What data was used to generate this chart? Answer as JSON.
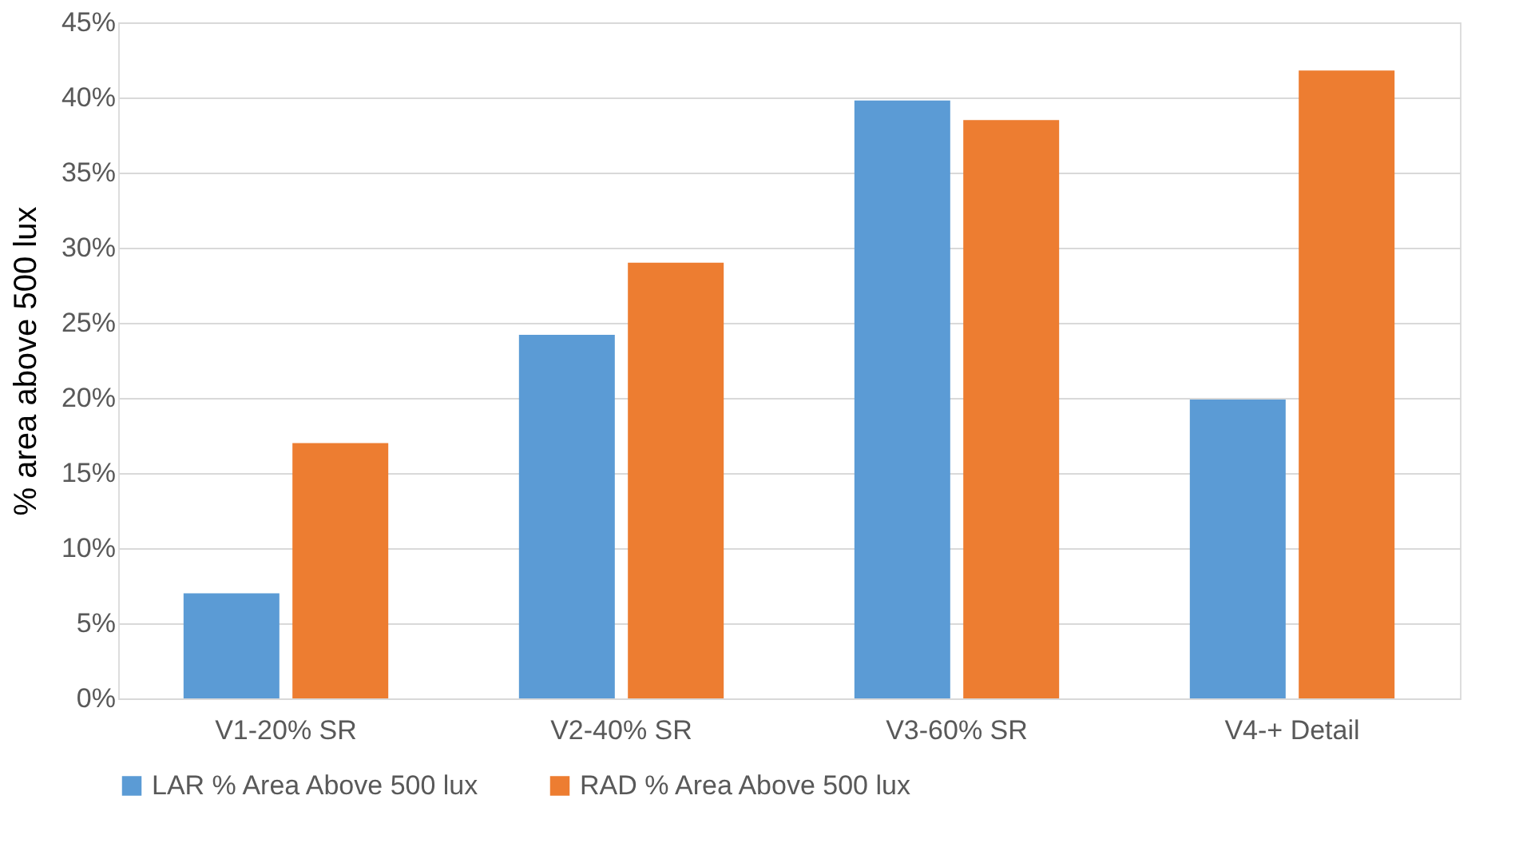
{
  "chart_data": {
    "type": "bar",
    "ylabel": "% area above 500 lux",
    "categories": [
      "V1-20% SR",
      "V2-40% SR",
      "V3-60% SR",
      "V4-+ Detail"
    ],
    "series": [
      {
        "name": "LAR % Area Above 500 lux",
        "color": "#5b9bd5",
        "values": [
          7.0,
          24.2,
          39.8,
          19.9
        ]
      },
      {
        "name": "RAD % Area Above 500 lux",
        "color": "#ed7d31",
        "values": [
          17.0,
          29.0,
          38.5,
          41.8
        ]
      }
    ],
    "ylim": [
      0,
      45
    ],
    "yticks": [
      {
        "value": 0,
        "label": "0%"
      },
      {
        "value": 5,
        "label": "5%"
      },
      {
        "value": 10,
        "label": "10%"
      },
      {
        "value": 15,
        "label": "15%"
      },
      {
        "value": 20,
        "label": "20%"
      },
      {
        "value": 25,
        "label": "25%"
      },
      {
        "value": 30,
        "label": "30%"
      },
      {
        "value": 35,
        "label": "35%"
      },
      {
        "value": 40,
        "label": "40%"
      },
      {
        "value": 45,
        "label": "45%"
      }
    ],
    "grid": "y",
    "legend": "bottom"
  }
}
